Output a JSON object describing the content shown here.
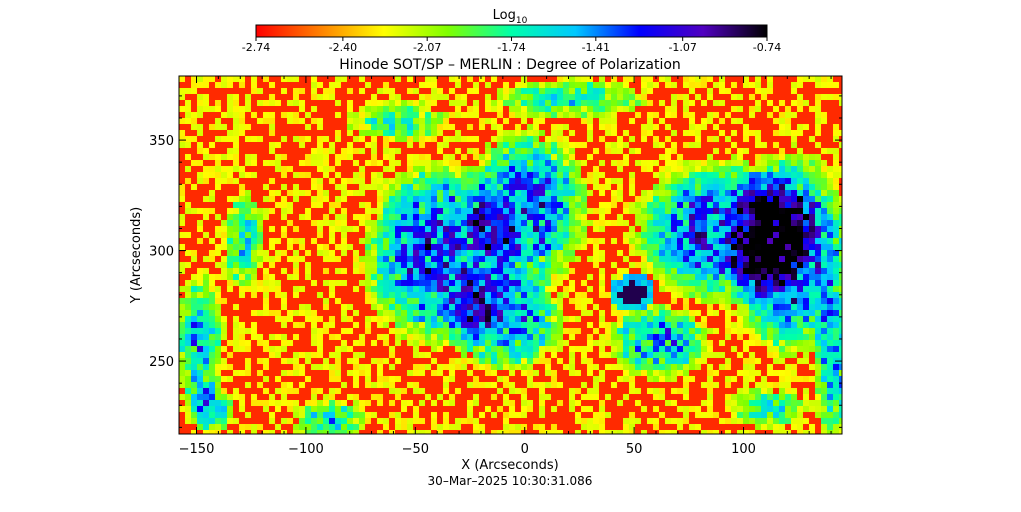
{
  "colorbar": {
    "label_base": "Log",
    "label_sub": "10",
    "ticks": [
      "-2.74",
      "-2.40",
      "-2.07",
      "-1.74",
      "-1.41",
      "-1.07",
      "-0.74"
    ],
    "range": [
      -2.74,
      -0.74
    ],
    "colormap": [
      "#ff0000",
      "#ff8000",
      "#ffff00",
      "#80ff00",
      "#00ffaa",
      "#00c8ff",
      "#0000ff",
      "#5000c0",
      "#000000"
    ]
  },
  "chart_data": {
    "type": "heatmap",
    "title": "Hinode SOT/SP – MERLIN : Degree of Polarization",
    "xlabel": "X (Arcseconds)",
    "ylabel": "Y (Arcseconds)",
    "xlim": [
      -158,
      145
    ],
    "ylim": [
      217,
      379
    ],
    "xticks": [
      -150,
      -100,
      -50,
      0,
      50,
      100
    ],
    "yticks": [
      250,
      300,
      350
    ],
    "xtick_labels": [
      "−150",
      "−100",
      "−50",
      "0",
      "50",
      "100"
    ],
    "ytick_labels": [
      "250",
      "300",
      "350"
    ],
    "value_scale": "log10",
    "value_range": [
      -2.74,
      -0.74
    ],
    "features": [
      "sunspot near X≈48, Y≈282"
    ],
    "grid": false
  },
  "timestamp": "30–Mar–2025 10:30:31.086"
}
